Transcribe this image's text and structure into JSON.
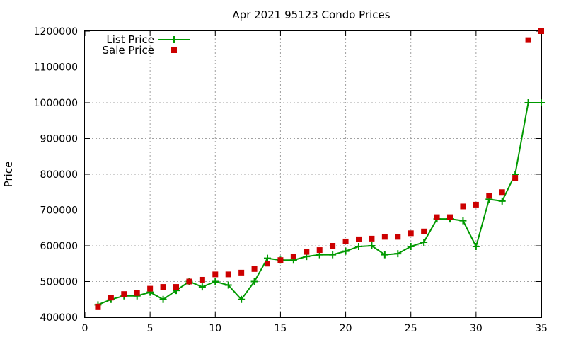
{
  "chart_data": {
    "type": "line",
    "title": "Apr 2021 95123 Condo Prices",
    "xlabel": "",
    "ylabel": "Price",
    "xlim": [
      0,
      35
    ],
    "ylim": [
      400000,
      1200000
    ],
    "xticks": [
      0,
      5,
      10,
      15,
      20,
      25,
      30,
      35
    ],
    "yticks": [
      400000,
      500000,
      600000,
      700000,
      800000,
      900000,
      1000000,
      1100000,
      1200000
    ],
    "grid": true,
    "legend_position": "top-left",
    "series": [
      {
        "name": "List Price",
        "style": "line+plus",
        "color": "#009900",
        "x": [
          1,
          2,
          3,
          4,
          5,
          6,
          7,
          8,
          9,
          10,
          11,
          12,
          13,
          14,
          15,
          16,
          17,
          18,
          19,
          20,
          21,
          22,
          23,
          24,
          25,
          26,
          27,
          28,
          29,
          30,
          31,
          32,
          33,
          34,
          35
        ],
        "values": [
          435000,
          450000,
          460000,
          460000,
          470000,
          450000,
          475000,
          500000,
          485000,
          500000,
          490000,
          450000,
          500000,
          565000,
          560000,
          560000,
          570000,
          575000,
          575000,
          585000,
          598000,
          600000,
          575000,
          578000,
          598000,
          610000,
          675000,
          675000,
          670000,
          598000,
          730000,
          725000,
          800000,
          1000000,
          1000000
        ]
      },
      {
        "name": "Sale Price",
        "style": "square",
        "color": "#cc0000",
        "x": [
          1,
          2,
          3,
          4,
          5,
          6,
          7,
          8,
          9,
          10,
          11,
          12,
          13,
          14,
          15,
          16,
          17,
          18,
          19,
          20,
          21,
          22,
          23,
          24,
          25,
          26,
          27,
          28,
          29,
          30,
          31,
          32,
          33,
          34,
          35
        ],
        "values": [
          430000,
          455000,
          465000,
          468000,
          480000,
          485000,
          485000,
          500000,
          505000,
          520000,
          520000,
          525000,
          535000,
          550000,
          560000,
          570000,
          583000,
          588000,
          600000,
          612000,
          618000,
          620000,
          625000,
          625000,
          635000,
          640000,
          680000,
          680000,
          710000,
          715000,
          740000,
          750000,
          790000,
          1175000,
          1200000
        ]
      }
    ]
  }
}
